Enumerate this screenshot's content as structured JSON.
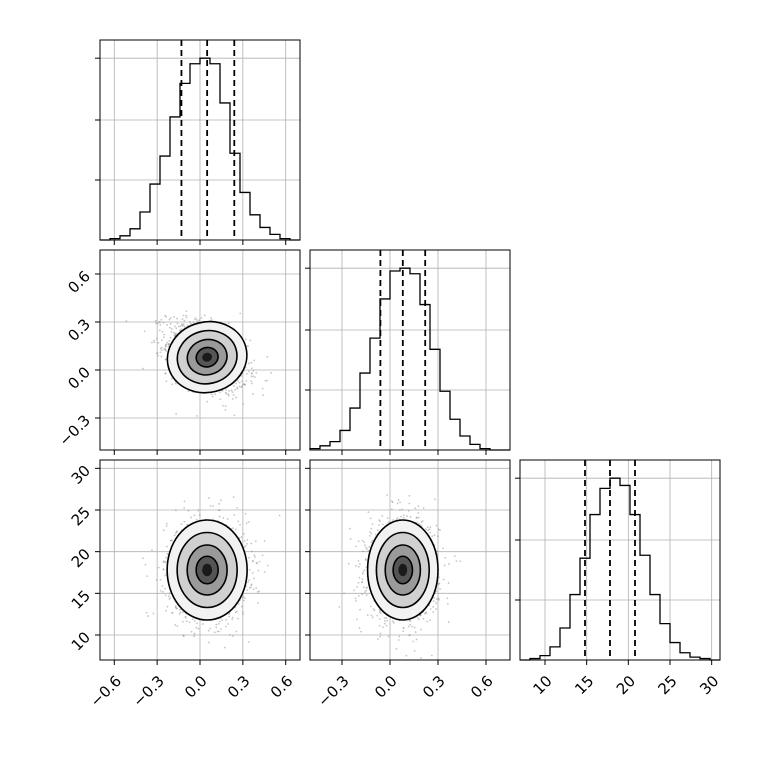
{
  "chart_data": {
    "type": "corner",
    "grid": true,
    "colors": {
      "line": "#000000",
      "grid": "#b0b0b0",
      "points": "#808080",
      "background": "#ffffff"
    },
    "params": [
      {
        "index": 0,
        "range": [
          -0.7,
          0.7
        ],
        "quantiles": [
          -0.13,
          0.05,
          0.24
        ],
        "ticks": [
          -0.6,
          -0.3,
          0.0,
          0.3,
          0.6
        ],
        "tick_labels": [
          "−0.6",
          "−0.3",
          "0.0",
          "0.3",
          "0.6"
        ]
      },
      {
        "index": 1,
        "range": [
          -0.5,
          0.75
        ],
        "quantiles": [
          -0.06,
          0.08,
          0.22
        ],
        "ticks": [
          -0.3,
          0.0,
          0.3,
          0.6
        ],
        "tick_labels": [
          "−0.3",
          "0.0",
          "0.3",
          "0.6"
        ]
      },
      {
        "index": 2,
        "range": [
          7,
          31
        ],
        "quantiles": [
          14.8,
          17.8,
          20.8
        ],
        "ticks": [
          10,
          15,
          20,
          25,
          30
        ],
        "tick_labels": [
          "10",
          "15",
          "20",
          "25",
          "30"
        ]
      }
    ],
    "histograms": [
      {
        "param": 0,
        "bin_edges": [
          -0.7,
          -0.63,
          -0.56,
          -0.49,
          -0.42,
          -0.35,
          -0.28,
          -0.21,
          -0.14,
          -0.07,
          0.0,
          0.07,
          0.14,
          0.21,
          0.28,
          0.35,
          0.42,
          0.49,
          0.56,
          0.63,
          0.7
        ],
        "counts": [
          0,
          1,
          3,
          8,
          20,
          40,
          60,
          88,
          112,
          126,
          130,
          126,
          98,
          62,
          34,
          18,
          9,
          4,
          1,
          0
        ]
      },
      {
        "param": 1,
        "bin_edges": [
          -0.5,
          -0.4375,
          -0.375,
          -0.3125,
          -0.25,
          -0.1875,
          -0.125,
          -0.0625,
          0.0,
          0.0625,
          0.125,
          0.1875,
          0.25,
          0.3125,
          0.375,
          0.4375,
          0.5,
          0.5625,
          0.625,
          0.6875,
          0.75
        ],
        "counts": [
          1,
          3,
          6,
          14,
          30,
          55,
          80,
          108,
          128,
          130,
          126,
          104,
          72,
          42,
          22,
          10,
          4,
          1,
          0,
          0
        ]
      },
      {
        "param": 2,
        "bin_edges": [
          7,
          8.2,
          9.4,
          10.6,
          11.8,
          13.0,
          14.2,
          15.4,
          16.6,
          17.8,
          19.0,
          20.2,
          21.4,
          22.6,
          23.8,
          25.0,
          26.2,
          27.4,
          28.6,
          29.8,
          31.0
        ],
        "counts": [
          0,
          1,
          3,
          9,
          22,
          45,
          70,
          100,
          118,
          125,
          120,
          100,
          72,
          45,
          25,
          12,
          5,
          2,
          1,
          0
        ]
      }
    ],
    "pairs": [
      {
        "x_param": 0,
        "y_param": 1,
        "mean": [
          0.05,
          0.08
        ],
        "std": [
          0.14,
          0.11
        ],
        "correlation": -0.4
      },
      {
        "x_param": 0,
        "y_param": 2,
        "mean": [
          0.05,
          17.8
        ],
        "std": [
          0.14,
          3.0
        ],
        "correlation": 0.0
      },
      {
        "x_param": 1,
        "y_param": 2,
        "mean": [
          0.08,
          17.8
        ],
        "std": [
          0.11,
          3.0
        ],
        "correlation": 0.0
      }
    ]
  }
}
